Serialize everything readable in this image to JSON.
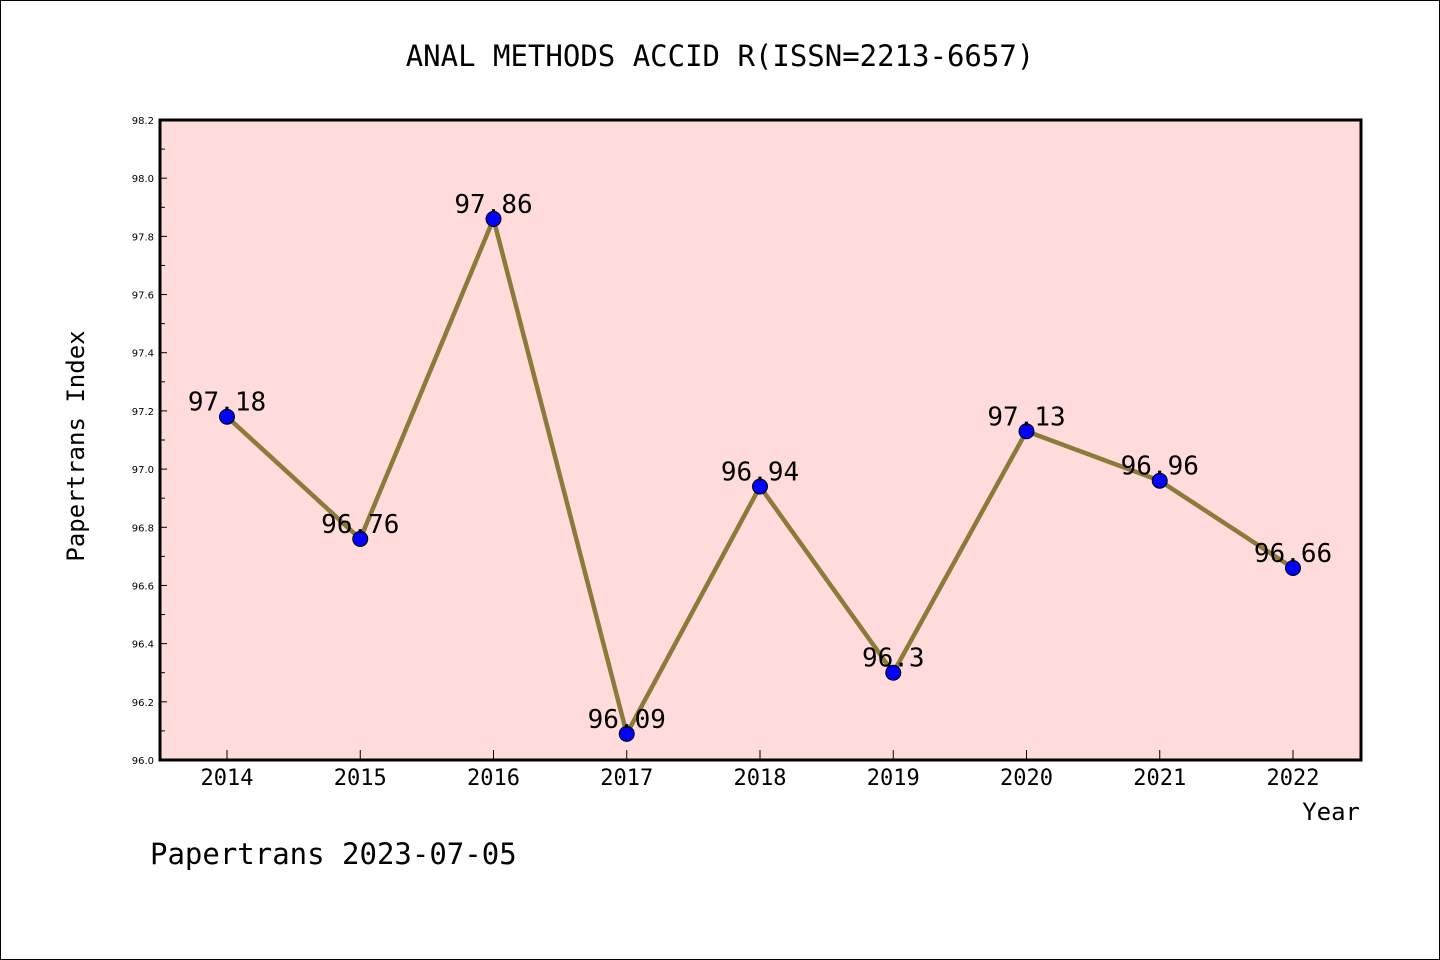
{
  "chart_data": {
    "type": "line",
    "title": "ANAL METHODS ACCID R(ISSN=2213-6657)",
    "xlabel": "Year",
    "ylabel": "Papertrans Index",
    "categories": [
      "2014",
      "2015",
      "2016",
      "2017",
      "2018",
      "2019",
      "2020",
      "2021",
      "2022"
    ],
    "series": [
      {
        "values": [
          97.18,
          96.76,
          97.86,
          96.09,
          96.94,
          96.3,
          97.13,
          96.96,
          96.66
        ],
        "labels": [
          "97.18",
          "96.76",
          "97.86",
          "96.09",
          "96.94",
          "96.3",
          "97.13",
          "96.96",
          "96.66"
        ]
      }
    ],
    "ylim": [
      96.0,
      98.2
    ],
    "yticks": [
      "96.0",
      "96.2",
      "96.4",
      "96.6",
      "96.8",
      "97.0",
      "97.2",
      "97.4",
      "97.6",
      "97.8",
      "98.0",
      "98.2"
    ],
    "grid": false,
    "colors": {
      "plot_background": "#ffdcdb",
      "line": "#8c7a3a",
      "marker": "#0000ff",
      "frame": "#000000"
    }
  },
  "footer": {
    "text": "Papertrans 2023-07-05"
  }
}
